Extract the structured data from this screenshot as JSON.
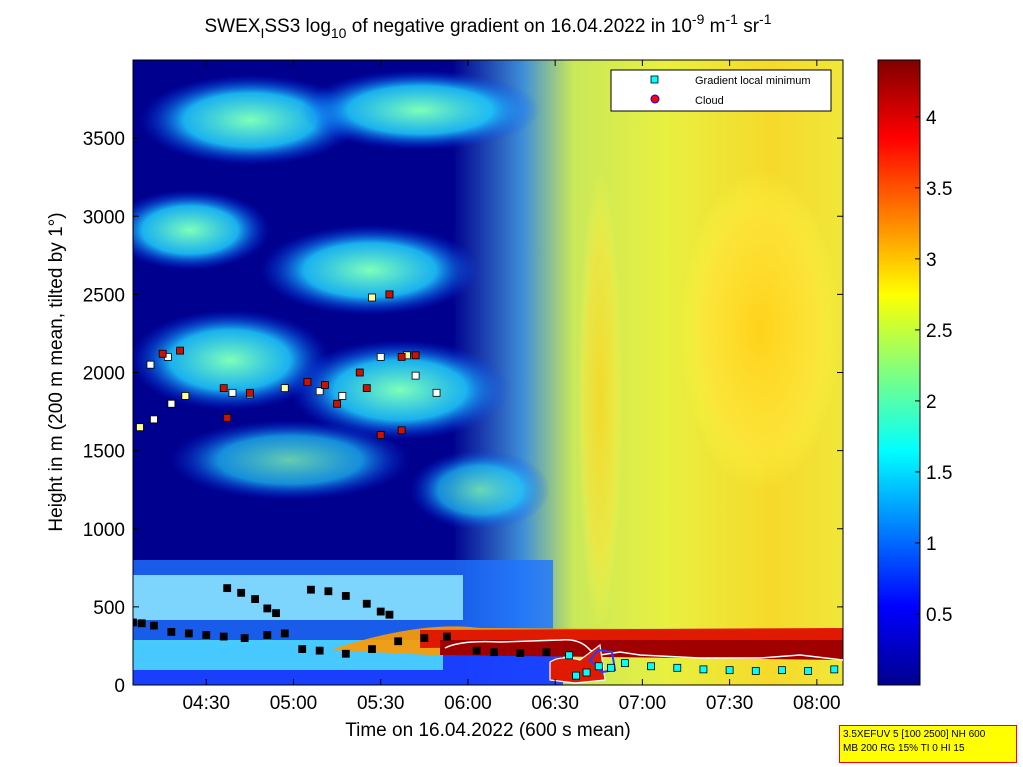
{
  "chart_data": {
    "type": "heatmap",
    "title_parts": {
      "t1": "SWEX",
      "sub1": "I",
      "t2": "SS3 log",
      "sub2": "10",
      "t3": " of negative gradient on 16.04.2022 in 10",
      "sup1": "-9",
      "t4": " m",
      "sup2": "-1",
      "t5": " sr",
      "sup3": "-1"
    },
    "xlabel": "Time on 16.04.2022 (600 s mean)",
    "ylabel": "Height in m (200 m mean, tilted by 1°)",
    "x_range_hours": [
      4.08,
      8.15
    ],
    "x_ticks": [
      {
        "v": 4.5,
        "label": "04:30"
      },
      {
        "v": 5.0,
        "label": "05:00"
      },
      {
        "v": 5.5,
        "label": "05:30"
      },
      {
        "v": 6.0,
        "label": "06:00"
      },
      {
        "v": 6.5,
        "label": "06:30"
      },
      {
        "v": 7.0,
        "label": "07:00"
      },
      {
        "v": 7.5,
        "label": "07:30"
      },
      {
        "v": 8.0,
        "label": "08:00"
      }
    ],
    "ylim": [
      0,
      4000
    ],
    "y_ticks": [
      {
        "v": 0,
        "label": "0"
      },
      {
        "v": 500,
        "label": "500"
      },
      {
        "v": 1000,
        "label": "1000"
      },
      {
        "v": 1500,
        "label": "1500"
      },
      {
        "v": 2000,
        "label": "2000"
      },
      {
        "v": 2500,
        "label": "2500"
      },
      {
        "v": 3000,
        "label": "3000"
      },
      {
        "v": 3500,
        "label": "3500"
      }
    ],
    "colorbar": {
      "range": [
        0,
        4.4
      ],
      "ticks": [
        {
          "v": 0.5,
          "label": "0.5"
        },
        {
          "v": 1,
          "label": "1"
        },
        {
          "v": 1.5,
          "label": "1.5"
        },
        {
          "v": 2,
          "label": "2"
        },
        {
          "v": 2.5,
          "label": "2.5"
        },
        {
          "v": 3,
          "label": "3"
        },
        {
          "v": 3.5,
          "label": "3.5"
        },
        {
          "v": 4,
          "label": "4"
        }
      ]
    },
    "legend": {
      "placement": "top-right",
      "entries": [
        {
          "label": "Gradient local minimum",
          "marker": "square",
          "color": "#00ffff"
        },
        {
          "label": "Cloud",
          "marker": "circle",
          "color": "#ff0000"
        }
      ]
    },
    "series": [
      {
        "name": "Gradient local minimum",
        "points": [
          [
            4.08,
            400
          ],
          [
            4.13,
            395
          ],
          [
            4.2,
            380
          ],
          [
            4.3,
            340
          ],
          [
            4.4,
            330
          ],
          [
            4.5,
            320
          ],
          [
            4.6,
            310
          ],
          [
            4.72,
            300
          ],
          [
            4.85,
            320
          ],
          [
            4.95,
            330
          ],
          [
            4.62,
            620
          ],
          [
            4.7,
            590
          ],
          [
            4.78,
            550
          ],
          [
            4.85,
            490
          ],
          [
            4.9,
            460
          ],
          [
            5.1,
            610
          ],
          [
            5.2,
            600
          ],
          [
            5.3,
            570
          ],
          [
            5.42,
            520
          ],
          [
            5.5,
            470
          ],
          [
            5.55,
            450
          ],
          [
            5.05,
            230
          ],
          [
            5.15,
            220
          ],
          [
            5.3,
            200
          ],
          [
            5.45,
            230
          ],
          [
            5.6,
            280
          ],
          [
            5.75,
            300
          ],
          [
            5.88,
            310
          ],
          [
            6.05,
            220
          ],
          [
            6.15,
            210
          ],
          [
            6.3,
            205
          ],
          [
            6.45,
            210
          ],
          [
            6.58,
            190
          ],
          [
            6.62,
            60
          ],
          [
            6.68,
            80
          ],
          [
            6.75,
            120
          ],
          [
            6.82,
            110
          ],
          [
            6.9,
            140
          ],
          [
            7.05,
            120
          ],
          [
            7.2,
            110
          ],
          [
            7.35,
            100
          ],
          [
            7.5,
            95
          ],
          [
            7.65,
            90
          ],
          [
            7.8,
            95
          ],
          [
            7.95,
            90
          ],
          [
            8.1,
            100
          ],
          [
            4.18,
            2050
          ],
          [
            4.28,
            2100
          ],
          [
            4.12,
            1650
          ],
          [
            4.2,
            1700
          ],
          [
            4.3,
            1800
          ],
          [
            4.38,
            1850
          ],
          [
            4.65,
            1870
          ],
          [
            4.75,
            1860
          ],
          [
            4.95,
            1900
          ],
          [
            5.15,
            1880
          ],
          [
            5.28,
            1850
          ],
          [
            5.45,
            2480
          ],
          [
            5.55,
            2500
          ],
          [
            5.5,
            2100
          ],
          [
            5.65,
            2110
          ],
          [
            5.7,
            1980
          ],
          [
            5.82,
            1870
          ]
        ]
      },
      {
        "name": "Cloud",
        "points": [
          [
            4.25,
            2120
          ],
          [
            4.35,
            2140
          ],
          [
            4.6,
            1900
          ],
          [
            4.62,
            1710
          ],
          [
            4.75,
            1870
          ],
          [
            5.08,
            1940
          ],
          [
            5.18,
            1920
          ],
          [
            5.25,
            1800
          ],
          [
            5.38,
            2000
          ],
          [
            5.42,
            1900
          ],
          [
            5.5,
            1600
          ],
          [
            5.62,
            1630
          ],
          [
            5.55,
            2500
          ],
          [
            5.62,
            2100
          ],
          [
            5.7,
            2110
          ]
        ]
      }
    ]
  },
  "info_box": {
    "line1": "3.5XEFUV 5 [100 2500] NH 600",
    "line2": "MB 200 RG 15% TI 0 HI 15"
  }
}
